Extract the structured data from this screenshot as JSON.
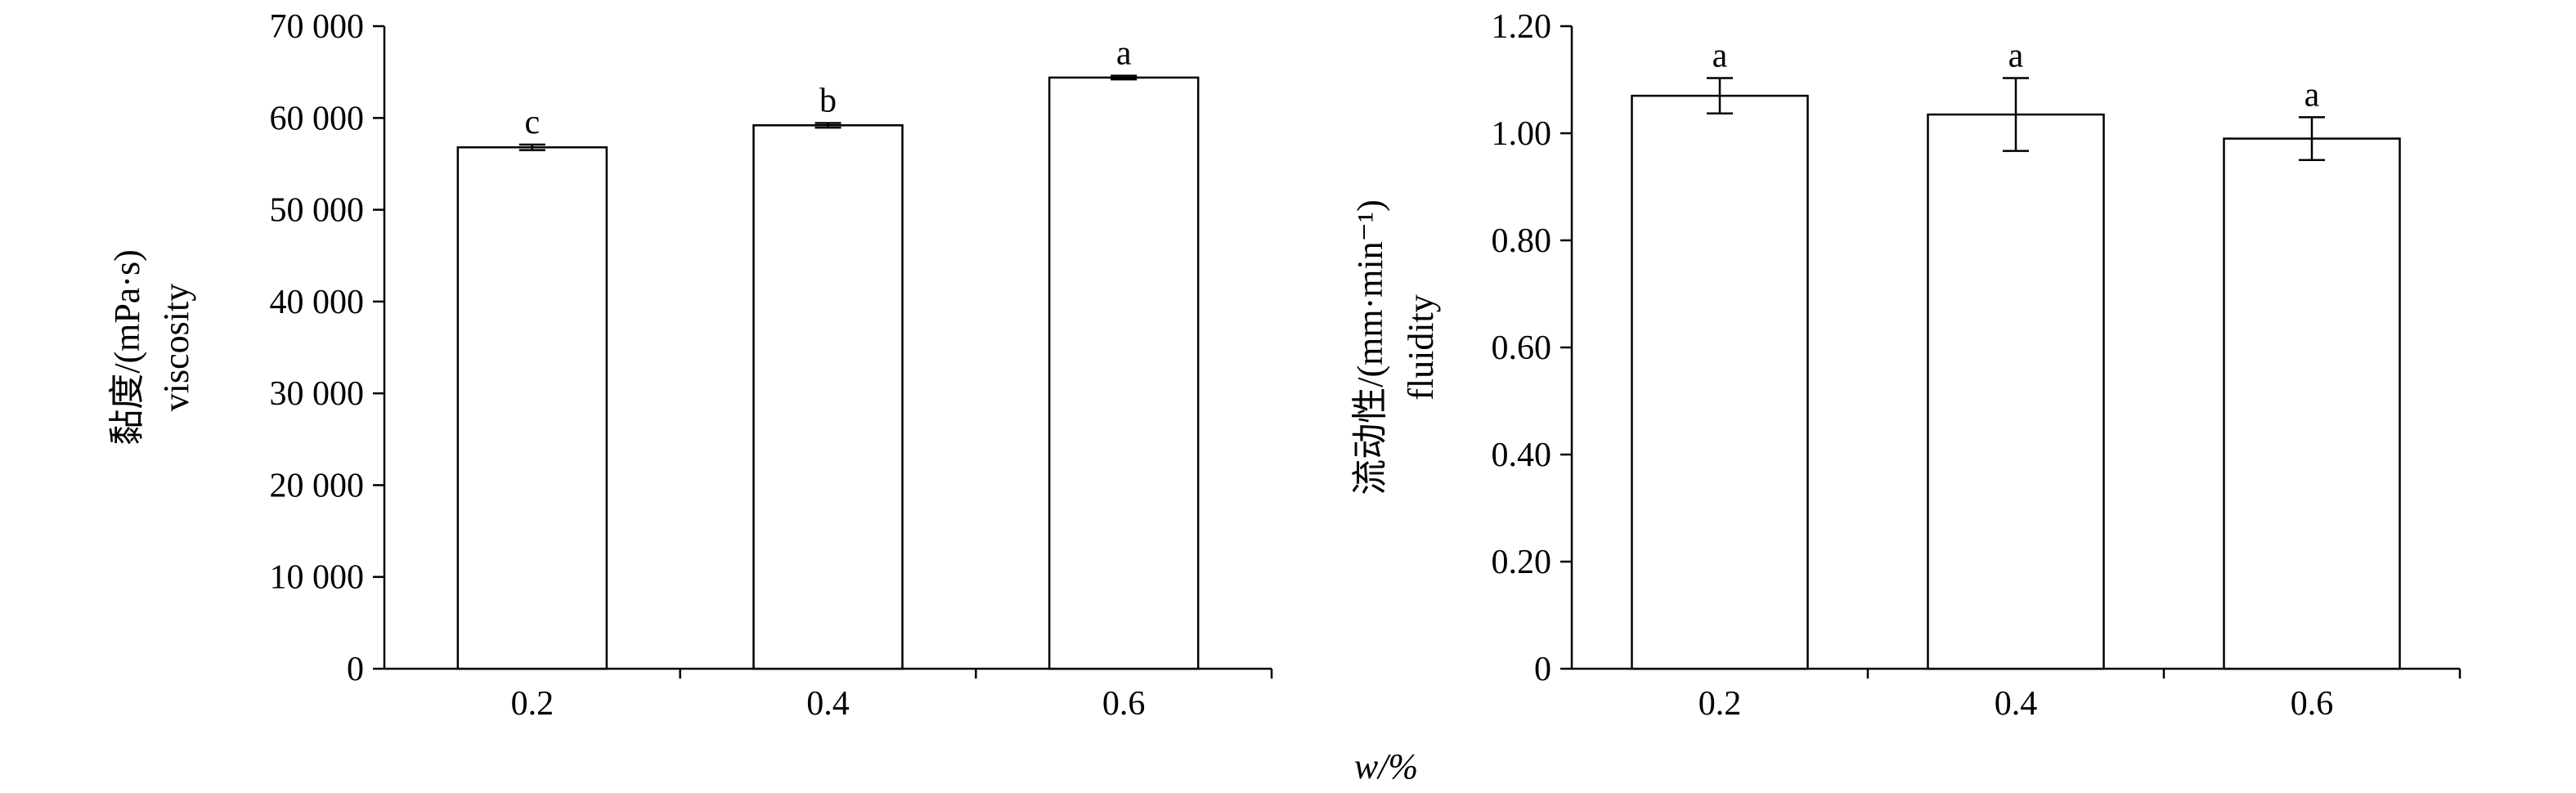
{
  "x_axis_title": "w/%",
  "chart_data": [
    {
      "type": "bar",
      "ylabel_line1": "黏度/(mPa·s)",
      "ylabel_line2": "viscosity",
      "categories": [
        "0.2",
        "0.4",
        "0.6"
      ],
      "values": [
        56800,
        59200,
        64400
      ],
      "errors": [
        300,
        250,
        200
      ],
      "significance": [
        "c",
        "b",
        "a"
      ],
      "ylim": [
        0,
        70000
      ],
      "yticks": [
        0,
        10000,
        20000,
        30000,
        40000,
        50000,
        60000,
        70000
      ],
      "ytick_labels": [
        "0",
        "10 000",
        "20 000",
        "30 000",
        "40 000",
        "50 000",
        "60 000",
        "70 000"
      ],
      "grid": false,
      "bar_fill": "#ffffff",
      "bar_stroke": "#000000"
    },
    {
      "type": "bar",
      "ylabel_line1": "流动性/(mm·min⁻¹)",
      "ylabel_line2": "fluidity",
      "categories": [
        "0.2",
        "0.4",
        "0.6"
      ],
      "values": [
        1.07,
        1.035,
        0.99
      ],
      "errors": [
        0.033,
        0.068,
        0.04
      ],
      "significance": [
        "a",
        "a",
        "a"
      ],
      "ylim": [
        0,
        1.2
      ],
      "yticks": [
        0,
        0.2,
        0.4,
        0.6,
        0.8,
        1.0,
        1.2
      ],
      "ytick_labels": [
        "0",
        "0.20",
        "0.40",
        "0.60",
        "0.80",
        "1.00",
        "1.20"
      ],
      "grid": false,
      "bar_fill": "#ffffff",
      "bar_stroke": "#000000"
    }
  ]
}
